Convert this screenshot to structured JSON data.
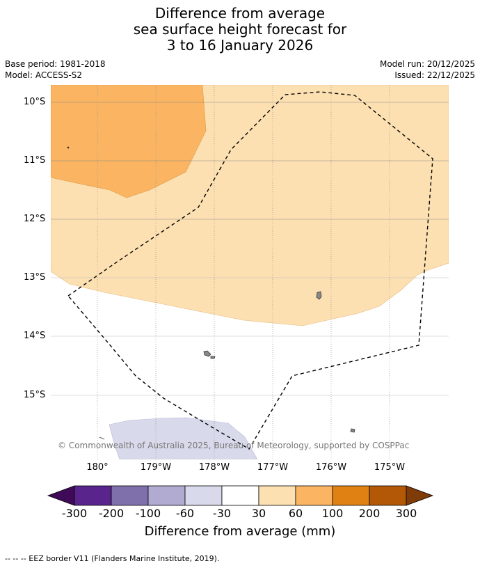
{
  "title": {
    "line1": "Difference from average",
    "line2": "sea surface height forecast for",
    "line3": "3 to 16 January 2026"
  },
  "meta": {
    "base_period": "Base period: 1981-2018",
    "model": "Model: ACCESS-S2",
    "model_run": "Model run: 20/12/2025",
    "issued": "Issued: 22/12/2025"
  },
  "map": {
    "lat_labels": [
      "10°S",
      "11°S",
      "12°S",
      "13°S",
      "14°S",
      "15°S"
    ],
    "lon_labels": [
      "180°",
      "179°W",
      "178°W",
      "177°W",
      "176°W",
      "175°W"
    ],
    "copyright": "© Commonwealth of Australia 2025, Bureau of Meteorology, supported by COSPPac",
    "colors": {
      "light_orange": "#fde0b2",
      "mid_orange": "#fbb562",
      "light_lavender": "#d8d9ea"
    }
  },
  "colorbar": {
    "label": "Difference from average (mm)",
    "ticks": [
      "-300",
      "-200",
      "-100",
      "-60",
      "-30",
      "30",
      "60",
      "100",
      "200",
      "300"
    ],
    "colors": [
      "#3f0b59",
      "#59248c",
      "#7f70ac",
      "#b1abd2",
      "#d8d9ea",
      "#ffffff",
      "#fde0b2",
      "#fbb562",
      "#e08114",
      "#b35806",
      "#7f3b08"
    ]
  },
  "footnote": "--  --  -- EEZ border V11 (Flanders Marine Institute, 2019)."
}
